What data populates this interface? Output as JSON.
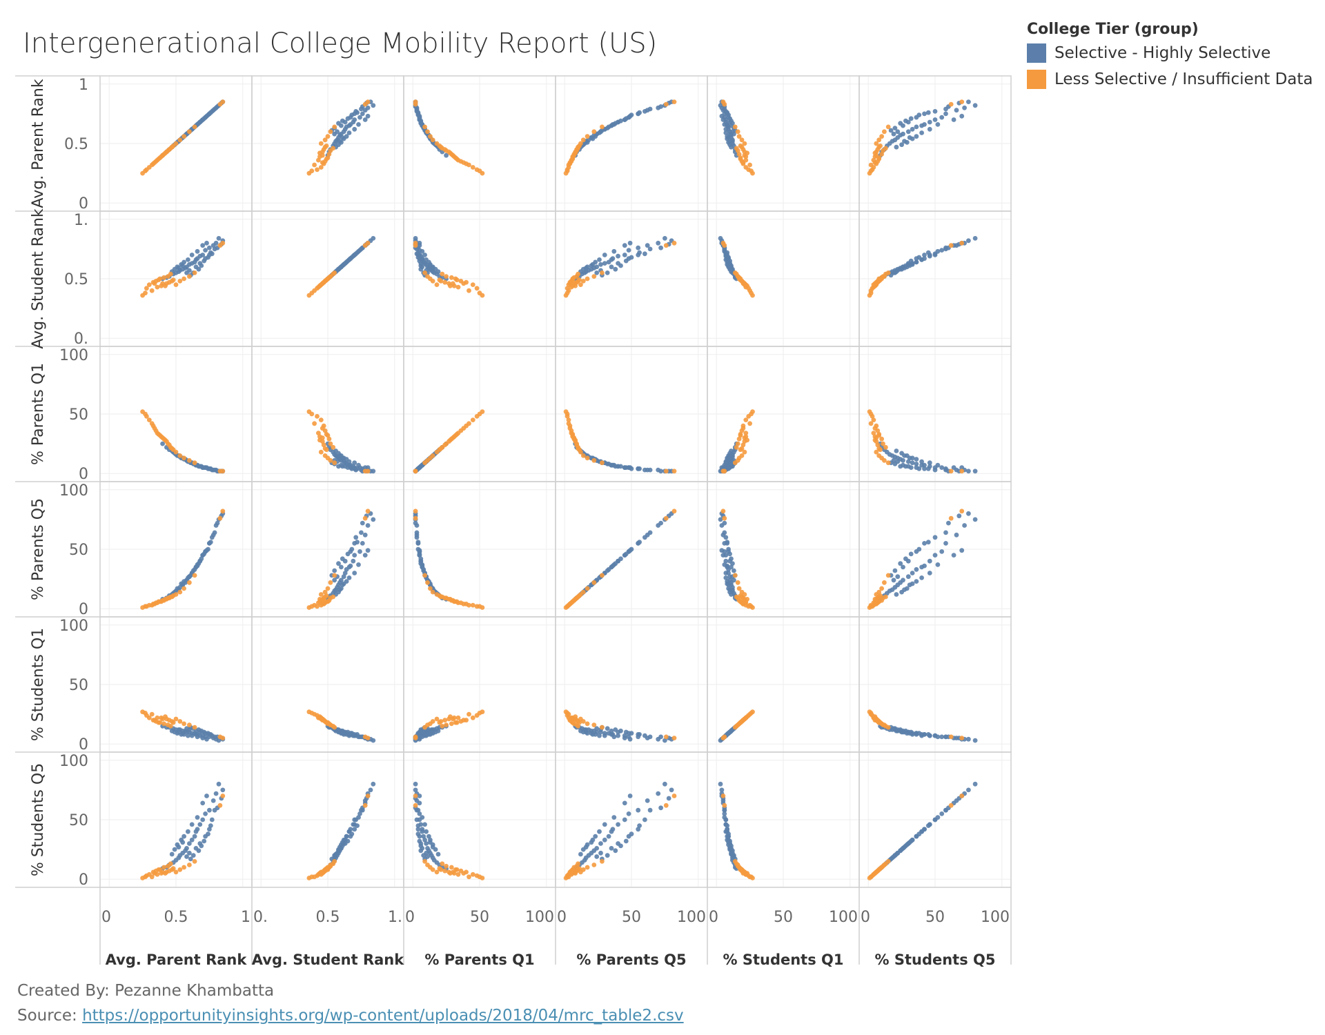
{
  "title": "Intergenerational College Mobility Report (US)",
  "legend": {
    "title": "College Tier (group)",
    "items": [
      {
        "label": "Selective - Highly Selective",
        "color": "#5b7faa"
      },
      {
        "label": "Less Selective / Insufficient Data",
        "color": "#f59a3e"
      }
    ]
  },
  "footer": {
    "created_by": "Created By: Pezanne Khambatta",
    "source_prefix": "Source: ",
    "source_url": "https://opportunityinsights.org/wp-content/uploads/2018/04/mrc_table2.csv"
  },
  "chart_data": {
    "type": "scatter",
    "layout": "scatterplot-matrix",
    "variables": [
      {
        "name": "Avg. Parent Rank",
        "range": [
          0,
          1
        ],
        "row_ticks": [
          "0",
          "0.5",
          "1"
        ],
        "col_ticks": [
          "0",
          "0.5",
          "1"
        ]
      },
      {
        "name": "Avg. Student Rank",
        "range": [
          0,
          1
        ],
        "row_ticks": [
          "0.",
          "0.5",
          "1."
        ],
        "col_ticks": [
          "0.",
          "0.5",
          "1."
        ]
      },
      {
        "name": "% Parents Q1",
        "range": [
          0,
          100
        ],
        "row_ticks": [
          "0",
          "50",
          "100"
        ],
        "col_ticks": [
          "0",
          "50",
          "100"
        ]
      },
      {
        "name": "% Parents Q5",
        "range": [
          0,
          100
        ],
        "row_ticks": [
          "0",
          "50",
          "100"
        ],
        "col_ticks": [
          "0",
          "50",
          "100"
        ]
      },
      {
        "name": "% Students Q1",
        "range": [
          0,
          100
        ],
        "row_ticks": [
          "0",
          "50",
          "100"
        ],
        "col_ticks": [
          "0",
          "50",
          "100"
        ]
      },
      {
        "name": "% Students Q5",
        "range": [
          0,
          100
        ],
        "row_ticks": [
          "0",
          "50",
          "100"
        ],
        "col_ticks": [
          "0",
          "50",
          "100"
        ]
      }
    ],
    "series": [
      {
        "name": "Selective - Highly Selective",
        "color": "#5b7faa",
        "points": [
          [
            0.8,
            0.8,
            3,
            70,
            4,
            72
          ],
          [
            0.78,
            0.78,
            3,
            62,
            5,
            66
          ],
          [
            0.85,
            0.82,
            2,
            80,
            4,
            75
          ],
          [
            0.75,
            0.76,
            4,
            55,
            6,
            58
          ],
          [
            0.72,
            0.74,
            5,
            48,
            6,
            55
          ],
          [
            0.7,
            0.7,
            5,
            45,
            7,
            50
          ],
          [
            0.68,
            0.69,
            6,
            40,
            7,
            46
          ],
          [
            0.66,
            0.67,
            7,
            36,
            8,
            42
          ],
          [
            0.65,
            0.66,
            7,
            35,
            8,
            40
          ],
          [
            0.64,
            0.64,
            8,
            33,
            9,
            36
          ],
          [
            0.62,
            0.63,
            9,
            30,
            9,
            33
          ],
          [
            0.6,
            0.62,
            10,
            27,
            10,
            30
          ],
          [
            0.58,
            0.6,
            11,
            24,
            10,
            26
          ],
          [
            0.57,
            0.59,
            12,
            22,
            11,
            24
          ],
          [
            0.55,
            0.58,
            13,
            20,
            11,
            22
          ],
          [
            0.53,
            0.57,
            14,
            18,
            12,
            20
          ],
          [
            0.52,
            0.56,
            15,
            16,
            12,
            18
          ],
          [
            0.5,
            0.55,
            16,
            15,
            12,
            16
          ],
          [
            0.48,
            0.54,
            18,
            13,
            13,
            14
          ],
          [
            0.45,
            0.52,
            20,
            11,
            14,
            12
          ],
          [
            0.43,
            0.51,
            22,
            9,
            14,
            10
          ],
          [
            0.4,
            0.5,
            25,
            8,
            15,
            9
          ],
          [
            0.82,
            0.84,
            2,
            75,
            3,
            80
          ],
          [
            0.76,
            0.72,
            4,
            56,
            8,
            45
          ],
          [
            0.74,
            0.68,
            4,
            50,
            9,
            38
          ],
          [
            0.71,
            0.65,
            5,
            46,
            10,
            32
          ],
          [
            0.69,
            0.61,
            6,
            42,
            11,
            28
          ],
          [
            0.67,
            0.58,
            6,
            38,
            12,
            24
          ],
          [
            0.63,
            0.55,
            8,
            32,
            13,
            20
          ],
          [
            0.61,
            0.53,
            9,
            28,
            14,
            17
          ],
          [
            0.59,
            0.66,
            10,
            26,
            7,
            40
          ],
          [
            0.56,
            0.64,
            12,
            23,
            8,
            36
          ],
          [
            0.54,
            0.62,
            13,
            21,
            8,
            33
          ],
          [
            0.51,
            0.6,
            15,
            17,
            9,
            29
          ],
          [
            0.49,
            0.58,
            17,
            14,
            10,
            25
          ],
          [
            0.47,
            0.56,
            19,
            12,
            11,
            21
          ],
          [
            0.73,
            0.8,
            5,
            49,
            4,
            70
          ],
          [
            0.7,
            0.78,
            5,
            45,
            5,
            64
          ],
          [
            0.66,
            0.73,
            7,
            37,
            6,
            52
          ],
          [
            0.62,
            0.7,
            9,
            30,
            7,
            46
          ],
          [
            0.79,
            0.75,
            3,
            64,
            6,
            58
          ],
          [
            0.77,
            0.71,
            3,
            60,
            7,
            50
          ],
          [
            0.6,
            0.57,
            10,
            27,
            12,
            22
          ],
          [
            0.58,
            0.55,
            11,
            24,
            13,
            19
          ],
          [
            0.65,
            0.6,
            7,
            35,
            11,
            26
          ],
          [
            0.68,
            0.63,
            6,
            40,
            10,
            30
          ],
          [
            0.72,
            0.67,
            5,
            48,
            9,
            36
          ],
          [
            0.75,
            0.7,
            4,
            55,
            8,
            42
          ],
          [
            0.81,
            0.76,
            2,
            72,
            6,
            60
          ],
          [
            0.84,
            0.79,
            2,
            78,
            5,
            68
          ],
          [
            0.55,
            0.61,
            13,
            20,
            9,
            31
          ],
          [
            0.52,
            0.59,
            15,
            16,
            10,
            27
          ]
        ]
      },
      {
        "name": "Less Selective / Insufficient Data",
        "color": "#f59a3e",
        "points": [
          [
            0.3,
            0.45,
            45,
            3,
            22,
            4
          ],
          [
            0.28,
            0.42,
            48,
            2,
            24,
            3
          ],
          [
            0.33,
            0.47,
            40,
            4,
            20,
            6
          ],
          [
            0.35,
            0.48,
            36,
            5,
            19,
            7
          ],
          [
            0.38,
            0.5,
            32,
            6,
            18,
            8
          ],
          [
            0.4,
            0.46,
            30,
            7,
            21,
            6
          ],
          [
            0.42,
            0.44,
            28,
            8,
            23,
            5
          ],
          [
            0.45,
            0.47,
            24,
            9,
            20,
            7
          ],
          [
            0.48,
            0.49,
            20,
            11,
            18,
            9
          ],
          [
            0.32,
            0.4,
            42,
            3,
            25,
            2
          ],
          [
            0.36,
            0.43,
            34,
            5,
            22,
            4
          ],
          [
            0.5,
            0.45,
            18,
            12,
            21,
            6
          ],
          [
            0.53,
            0.48,
            15,
            14,
            19,
            8
          ],
          [
            0.27,
            0.38,
            50,
            2,
            26,
            2
          ],
          [
            0.25,
            0.36,
            52,
            1,
            27,
            1
          ],
          [
            0.44,
            0.52,
            25,
            9,
            16,
            11
          ],
          [
            0.46,
            0.54,
            22,
            10,
            15,
            13
          ],
          [
            0.41,
            0.51,
            29,
            7,
            17,
            10
          ],
          [
            0.37,
            0.49,
            33,
            6,
            18,
            8
          ],
          [
            0.34,
            0.46,
            38,
            4,
            20,
            5
          ],
          [
            0.56,
            0.5,
            13,
            17,
            17,
            10
          ],
          [
            0.6,
            0.52,
            11,
            22,
            16,
            12
          ],
          [
            0.64,
            0.55,
            9,
            28,
            14,
            15
          ],
          [
            0.85,
            0.8,
            2,
            82,
            5,
            70
          ],
          [
            0.83,
            0.78,
            2,
            76,
            6,
            62
          ],
          [
            0.39,
            0.44,
            31,
            6,
            22,
            5
          ],
          [
            0.43,
            0.46,
            27,
            8,
            21,
            6
          ],
          [
            0.47,
            0.48,
            21,
            10,
            19,
            8
          ]
        ]
      }
    ]
  }
}
